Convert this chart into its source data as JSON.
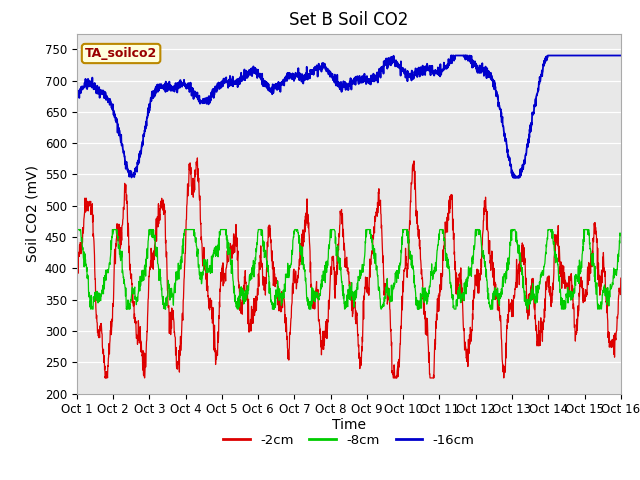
{
  "title": "Set B Soil CO2",
  "ylabel": "Soil CO2 (mV)",
  "xlabel": "Time",
  "ylim": [
    200,
    775
  ],
  "yticks": [
    200,
    250,
    300,
    350,
    400,
    450,
    500,
    550,
    600,
    650,
    700,
    750
  ],
  "xtick_labels": [
    "Oct 1",
    "Oct 2",
    "Oct 3",
    "Oct 4",
    "Oct 5",
    "Oct 6",
    "Oct 7",
    "Oct 8",
    "Oct 9",
    "Oct 10",
    "Oct 11",
    "Oct 12",
    "Oct 13",
    "Oct 14",
    "Oct 15",
    "Oct 16"
  ],
  "annotation_text": "TA_soilco2",
  "annotation_facecolor": "#ffffdd",
  "annotation_edgecolor": "#bb8800",
  "bg_color": "#e8e8e8",
  "color_red": "#dd0000",
  "color_green": "#00cc00",
  "color_blue": "#0000cc",
  "legend_labels": [
    "-2cm",
    "-8cm",
    "-16cm"
  ],
  "title_fontsize": 12,
  "axis_fontsize": 10,
  "tick_fontsize": 8.5
}
